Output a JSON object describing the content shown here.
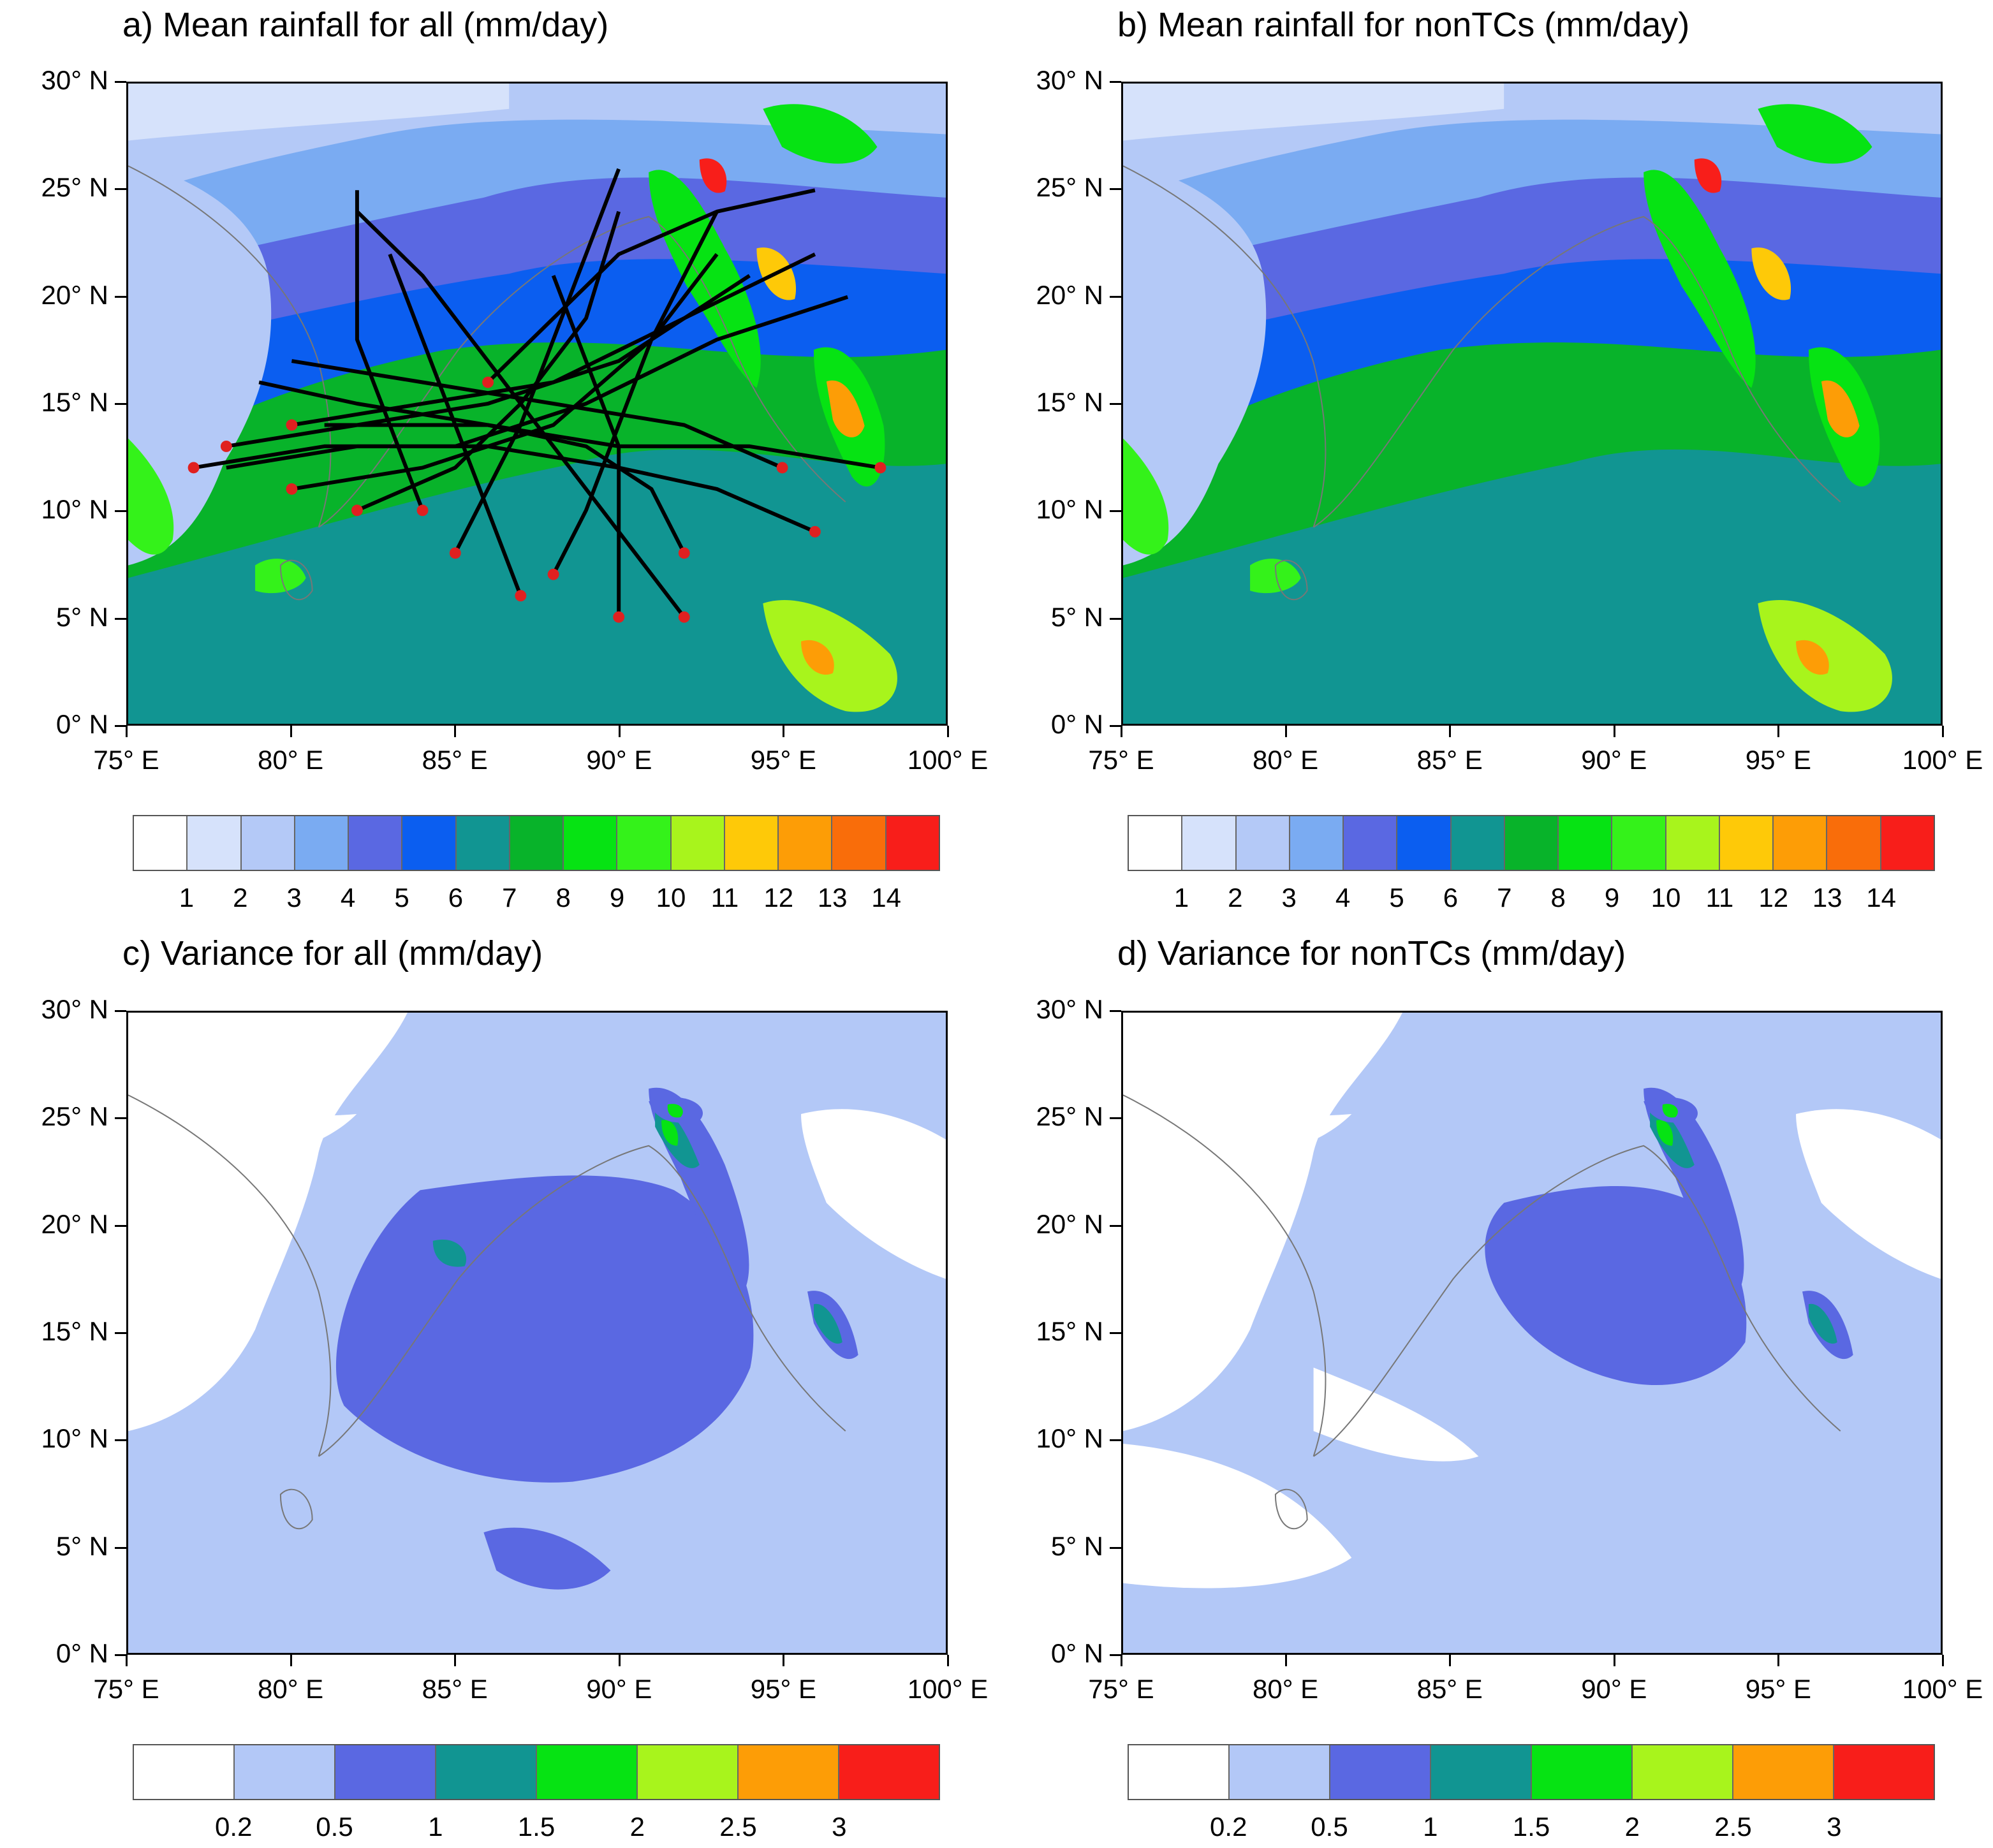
{
  "panels": {
    "a": {
      "title": "a) Mean rainfall for all (mm/day)"
    },
    "b": {
      "title": "b) Mean rainfall for nonTCs (mm/day)"
    },
    "c": {
      "title": "c) Variance for all (mm/day)"
    },
    "d": {
      "title": "d) Variance for nonTCs (mm/day)"
    }
  },
  "axes": {
    "y_labels": [
      "30° N",
      "25° N",
      "20° N",
      "15° N",
      "10° N",
      "5° N",
      "0° N"
    ],
    "x_labels": [
      "75° E",
      "80° E",
      "85° E",
      "90° E",
      "95° E",
      "100° E"
    ],
    "lat_range": [
      0,
      30
    ],
    "lon_range": [
      75,
      100
    ]
  },
  "colorbars": {
    "mean": {
      "colors": [
        "#ffffff",
        "#d6e2fb",
        "#b4c9f7",
        "#7aabf2",
        "#5a68e2",
        "#0b5ef0",
        "#119592",
        "#08b32a",
        "#06e313",
        "#34f21a",
        "#a8f41c",
        "#fec908",
        "#fd9d06",
        "#f96d0a",
        "#f81e1a"
      ],
      "labels": [
        "1",
        "2",
        "3",
        "4",
        "5",
        "6",
        "7",
        "8",
        "9",
        "10",
        "11",
        "12",
        "13",
        "14"
      ]
    },
    "variance": {
      "colors": [
        "#ffffff",
        "#b3c8f7",
        "#5a68e2",
        "#119592",
        "#06e313",
        "#a8f41c",
        "#fd9d06",
        "#f81e1a"
      ],
      "labels": [
        "0.2",
        "0.5",
        "1",
        "1.5",
        "2",
        "2.5",
        "3"
      ]
    }
  },
  "overlay": {
    "track_color": "#000000",
    "genesis_marker_color": "#e02020"
  }
}
